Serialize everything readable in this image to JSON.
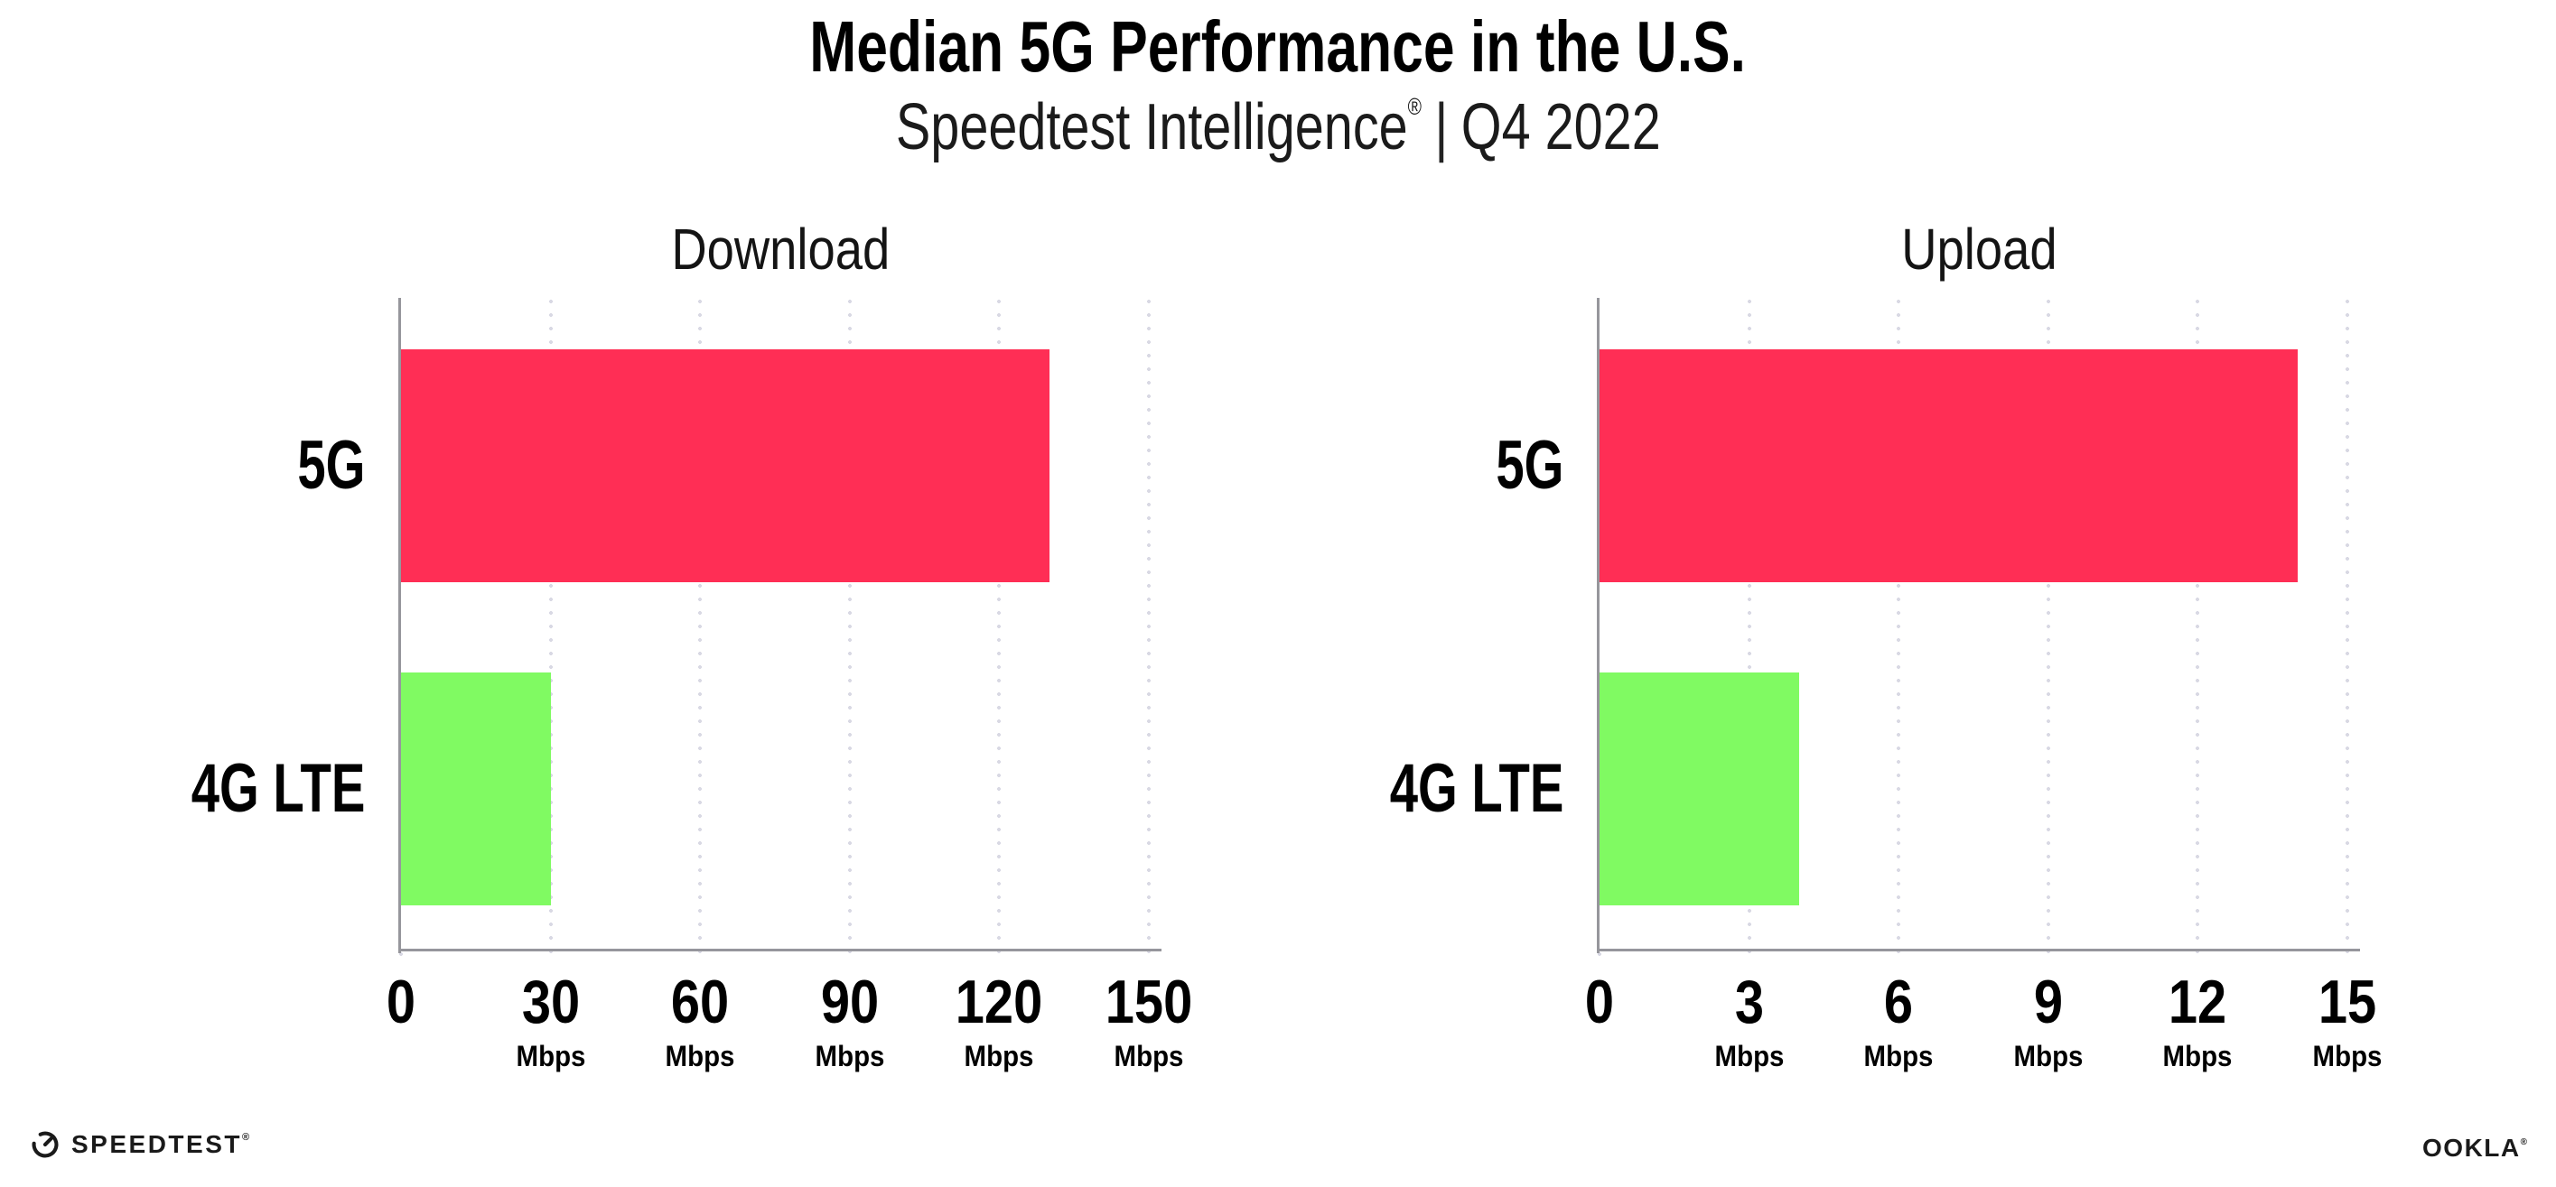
{
  "header": {
    "title": "Median 5G Performance in the U.S.",
    "subtitle_brand": "Speedtest Intelligence",
    "subtitle_reg": "®",
    "subtitle_pipe": "|",
    "subtitle_period": "Q4 2022"
  },
  "colors": {
    "bar_5g": "#ff2e55",
    "bar_4g_lte": "#80fa62",
    "axis_line": "#96969c",
    "grid_dots": "#d9d9e4",
    "text": "#000000"
  },
  "chart_data": [
    {
      "type": "bar",
      "orientation": "horizontal",
      "title": "Download",
      "categories": [
        "5G",
        "4G LTE"
      ],
      "values": [
        130,
        30
      ],
      "unit": "Mbps",
      "xlim": [
        0,
        150
      ],
      "xticks": [
        0,
        30,
        60,
        90,
        120,
        150
      ],
      "bar_colors": [
        "#ff2e55",
        "#80fa62"
      ],
      "grid": "vertical-dotted",
      "legend": "none"
    },
    {
      "type": "bar",
      "orientation": "horizontal",
      "title": "Upload",
      "categories": [
        "5G",
        "4G LTE"
      ],
      "values": [
        14,
        4
      ],
      "unit": "Mbps",
      "xlim": [
        0,
        15
      ],
      "xticks": [
        0,
        3,
        6,
        9,
        12,
        15
      ],
      "bar_colors": [
        "#ff2e55",
        "#80fa62"
      ],
      "grid": "vertical-dotted",
      "legend": "none"
    }
  ],
  "footer": {
    "speedtest_label": "SPEEDTEST",
    "speedtest_mark": "®",
    "ookla_label": "OOKLA",
    "ookla_mark": "®"
  }
}
